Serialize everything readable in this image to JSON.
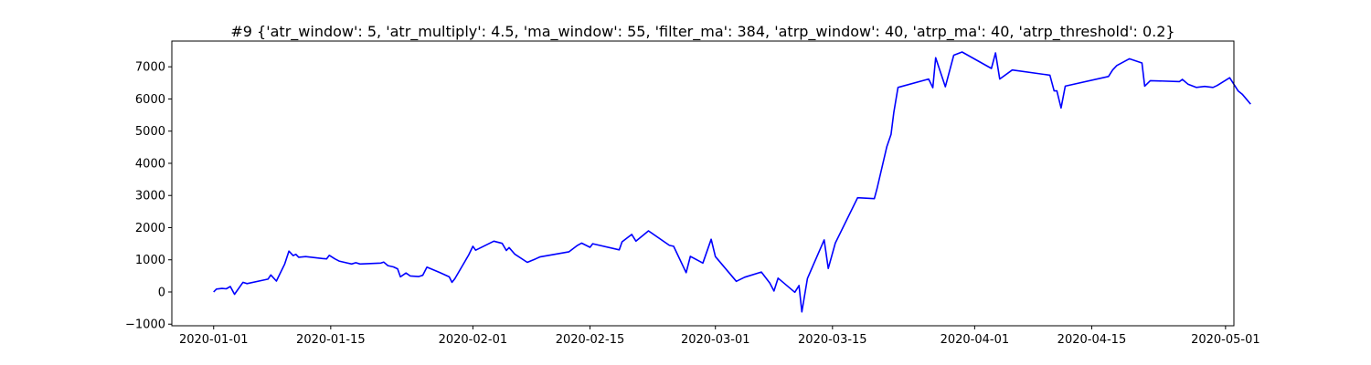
{
  "chart_data": {
    "type": "line",
    "title": "#9 {'atr_window': 5, 'atr_multiply': 4.5, 'ma_window': 55, 'filter_ma': 384, 'atrp_window': 40, 'atrp_ma': 40, 'atrp_threshold': 0.2}",
    "xlabel": "",
    "ylabel": "",
    "xlim": [
      "2019-12-27",
      "2020-05-02"
    ],
    "ylim": [
      -1050,
      7800
    ],
    "grid": false,
    "x_ticks": [
      "2020-01-01",
      "2020-01-15",
      "2020-02-01",
      "2020-02-15",
      "2020-03-01",
      "2020-03-15",
      "2020-04-01",
      "2020-04-15",
      "2020-05-01"
    ],
    "y_ticks": [
      -1000,
      0,
      1000,
      2000,
      3000,
      4000,
      5000,
      6000,
      7000
    ],
    "series": [
      {
        "color": "#0000ff",
        "points": [
          [
            "2020-01-01T00:00",
            0
          ],
          [
            "2020-01-01T08:00",
            90
          ],
          [
            "2020-01-02T00:00",
            110
          ],
          [
            "2020-01-02T12:00",
            100
          ],
          [
            "2020-01-03T00:00",
            170
          ],
          [
            "2020-01-03T12:00",
            -70
          ],
          [
            "2020-01-04T12:00",
            300
          ],
          [
            "2020-01-05T00:00",
            260
          ],
          [
            "2020-01-07T00:00",
            370
          ],
          [
            "2020-01-07T12:00",
            400
          ],
          [
            "2020-01-07T20:00",
            530
          ],
          [
            "2020-01-08T12:00",
            340
          ],
          [
            "2020-01-09T12:00",
            870
          ],
          [
            "2020-01-10T00:00",
            1270
          ],
          [
            "2020-01-10T12:00",
            1130
          ],
          [
            "2020-01-10T20:00",
            1170
          ],
          [
            "2020-01-11T04:00",
            1080
          ],
          [
            "2020-01-12T00:00",
            1100
          ],
          [
            "2020-01-14T00:00",
            1040
          ],
          [
            "2020-01-14T12:00",
            1030
          ],
          [
            "2020-01-14T20:00",
            1140
          ],
          [
            "2020-01-15T12:00",
            1030
          ],
          [
            "2020-01-16T00:00",
            960
          ],
          [
            "2020-01-17T12:00",
            870
          ],
          [
            "2020-01-18T00:00",
            910
          ],
          [
            "2020-01-18T12:00",
            870
          ],
          [
            "2020-01-21T00:00",
            900
          ],
          [
            "2020-01-21T08:00",
            930
          ],
          [
            "2020-01-21T20:00",
            820
          ],
          [
            "2020-01-22T12:00",
            780
          ],
          [
            "2020-01-23T00:00",
            720
          ],
          [
            "2020-01-23T08:00",
            470
          ],
          [
            "2020-01-24T00:00",
            590
          ],
          [
            "2020-01-24T12:00",
            500
          ],
          [
            "2020-01-25T12:00",
            480
          ],
          [
            "2020-01-26T00:00",
            520
          ],
          [
            "2020-01-26T12:00",
            770
          ],
          [
            "2020-01-28T00:00",
            610
          ],
          [
            "2020-01-29T04:00",
            470
          ],
          [
            "2020-01-29T12:00",
            300
          ],
          [
            "2020-01-29T20:00",
            410
          ],
          [
            "2020-01-31T12:00",
            1150
          ],
          [
            "2020-02-01T00:00",
            1420
          ],
          [
            "2020-02-01T08:00",
            1300
          ],
          [
            "2020-02-03T12:00",
            1580
          ],
          [
            "2020-02-04T12:00",
            1510
          ],
          [
            "2020-02-05T00:00",
            1290
          ],
          [
            "2020-02-05T08:00",
            1380
          ],
          [
            "2020-02-06T00:00",
            1180
          ],
          [
            "2020-02-07T12:00",
            920
          ],
          [
            "2020-02-08T12:00",
            1030
          ],
          [
            "2020-02-09T00:00",
            1090
          ],
          [
            "2020-02-12T12:00",
            1250
          ],
          [
            "2020-02-13T12:00",
            1450
          ],
          [
            "2020-02-14T00:00",
            1520
          ],
          [
            "2020-02-15T00:00",
            1390
          ],
          [
            "2020-02-15T08:00",
            1500
          ],
          [
            "2020-02-18T12:00",
            1310
          ],
          [
            "2020-02-18T20:00",
            1560
          ],
          [
            "2020-02-20T00:00",
            1790
          ],
          [
            "2020-02-20T12:00",
            1580
          ],
          [
            "2020-02-22T00:00",
            1900
          ],
          [
            "2020-02-24T12:00",
            1450
          ],
          [
            "2020-02-25T00:00",
            1420
          ],
          [
            "2020-02-26T12:00",
            600
          ],
          [
            "2020-02-27T00:00",
            1110
          ],
          [
            "2020-02-28T12:00",
            900
          ],
          [
            "2020-02-29T12:00",
            1640
          ],
          [
            "2020-03-01T00:00",
            1100
          ],
          [
            "2020-03-03T12:00",
            330
          ],
          [
            "2020-03-04T12:00",
            460
          ],
          [
            "2020-03-06T12:00",
            620
          ],
          [
            "2020-03-07T12:00",
            280
          ],
          [
            "2020-03-08T00:00",
            30
          ],
          [
            "2020-03-08T12:00",
            430
          ],
          [
            "2020-03-10T12:00",
            -10
          ],
          [
            "2020-03-11T00:00",
            200
          ],
          [
            "2020-03-11T08:00",
            -620
          ],
          [
            "2020-03-12T00:00",
            420
          ],
          [
            "2020-03-14T00:00",
            1620
          ],
          [
            "2020-03-14T12:00",
            730
          ],
          [
            "2020-03-15T08:00",
            1520
          ],
          [
            "2020-03-18T00:00",
            2930
          ],
          [
            "2020-03-20T00:00",
            2900
          ],
          [
            "2020-03-20T08:00",
            3220
          ],
          [
            "2020-03-21T12:00",
            4520
          ],
          [
            "2020-03-22T00:00",
            4900
          ],
          [
            "2020-03-22T08:00",
            5580
          ],
          [
            "2020-03-22T20:00",
            6360
          ],
          [
            "2020-03-26T12:00",
            6620
          ],
          [
            "2020-03-27T00:00",
            6350
          ],
          [
            "2020-03-27T08:00",
            7280
          ],
          [
            "2020-03-28T12:00",
            6380
          ],
          [
            "2020-03-29T12:00",
            7360
          ],
          [
            "2020-03-30T12:00",
            7460
          ],
          [
            "2020-04-03T00:00",
            6950
          ],
          [
            "2020-04-03T12:00",
            7430
          ],
          [
            "2020-04-04T00:00",
            6620
          ],
          [
            "2020-04-05T12:00",
            6900
          ],
          [
            "2020-04-10T00:00",
            6740
          ],
          [
            "2020-04-10T12:00",
            6250
          ],
          [
            "2020-04-10T20:00",
            6250
          ],
          [
            "2020-04-11T08:00",
            5720
          ],
          [
            "2020-04-11T20:00",
            6400
          ],
          [
            "2020-04-17T00:00",
            6700
          ],
          [
            "2020-04-17T12:00",
            6900
          ],
          [
            "2020-04-18T00:00",
            7040
          ],
          [
            "2020-04-19T12:00",
            7250
          ],
          [
            "2020-04-21T00:00",
            7120
          ],
          [
            "2020-04-21T08:00",
            6400
          ],
          [
            "2020-04-22T00:00",
            6570
          ],
          [
            "2020-04-25T12:00",
            6540
          ],
          [
            "2020-04-25T20:00",
            6610
          ],
          [
            "2020-04-26T12:00",
            6460
          ],
          [
            "2020-04-27T12:00",
            6360
          ],
          [
            "2020-04-28T12:00",
            6390
          ],
          [
            "2020-04-29T12:00",
            6360
          ],
          [
            "2020-04-30T00:00",
            6420
          ],
          [
            "2020-05-01T12:00",
            6660
          ],
          [
            "2020-05-02T12:00",
            6250
          ],
          [
            "2020-05-03T00:00",
            6150
          ],
          [
            "2020-05-04T00:00",
            5840
          ]
        ]
      }
    ]
  }
}
